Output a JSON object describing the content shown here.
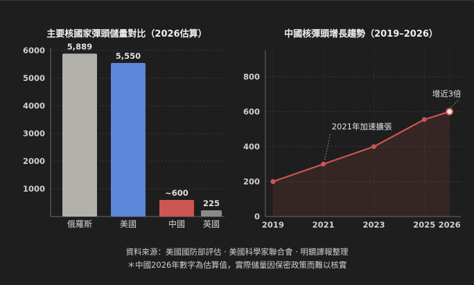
{
  "chart_data": [
    {
      "type": "bar",
      "title": "主要核國家彈頭儲量對比（2026估算）",
      "categories": [
        "俄羅斯",
        "美國",
        "中國",
        "英國"
      ],
      "values": [
        5889,
        5550,
        600,
        225
      ],
      "data_labels": [
        "5,889",
        "5,550",
        "~600",
        "225"
      ],
      "colors": [
        "#b3b2aa",
        "#5b87d8",
        "#cd5652",
        "#8a8a86"
      ],
      "ylim": [
        0,
        6000
      ],
      "yticks": [
        1000,
        2000,
        3000,
        4000,
        5000,
        6000
      ],
      "grid": true
    },
    {
      "type": "line",
      "title": "中國核彈頭增長趨勢（2019–2026）",
      "x": [
        2019,
        2021,
        2023,
        2025,
        2026
      ],
      "values": [
        200,
        300,
        400,
        555,
        600
      ],
      "xticks": [
        "2019",
        "2021",
        "2023",
        "2025",
        "2026"
      ],
      "ylim": [
        0,
        950
      ],
      "yticks": [
        0,
        200,
        400,
        600,
        800
      ],
      "color": "#cd5652",
      "grid": true,
      "annotations": [
        {
          "x": 2021,
          "y": 300,
          "text": "2021年加速擴張"
        },
        {
          "x": 2026,
          "y": 600,
          "text": "增近3倍"
        }
      ]
    }
  ],
  "footer": {
    "source": "資料來源：美國國防部評估 · 美國科學家聯合會 · 明鏡譯報整理",
    "note": "＊中國2026年數字為估算值，實際儲量因保密政策而難以核實"
  }
}
